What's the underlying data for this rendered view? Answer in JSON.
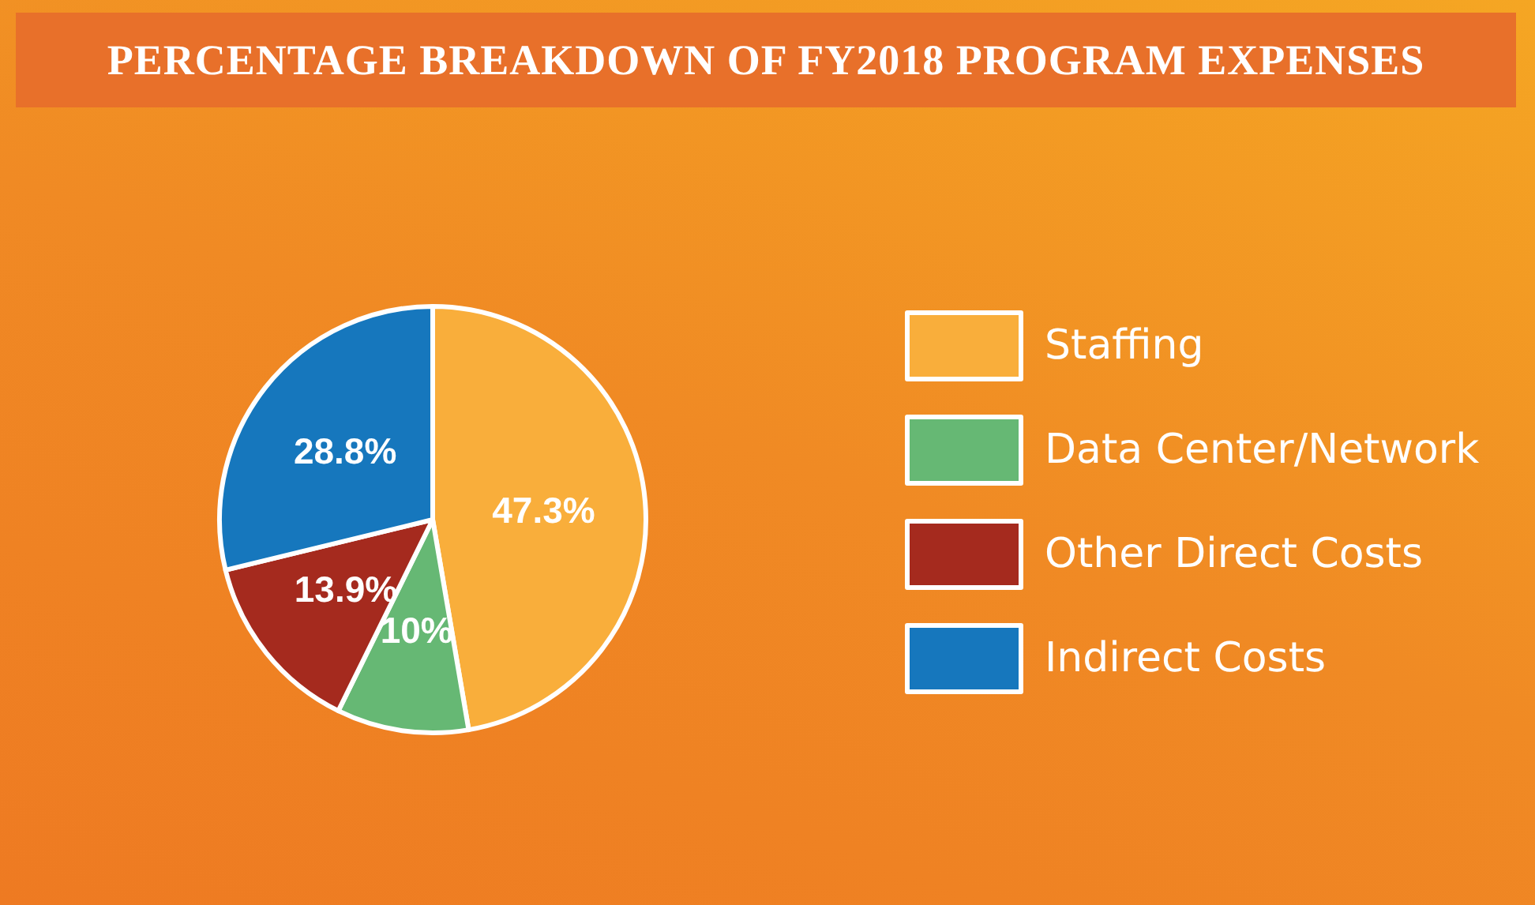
{
  "chart_data": {
    "type": "pie",
    "title": "PERCENTAGE BREAKDOWN OF FY2018 PROGRAM EXPENSES",
    "categories": [
      "Staffing",
      "Data Center/Network",
      "Other Direct Costs",
      "Indirect Costs"
    ],
    "values": [
      47.3,
      10,
      13.9,
      28.8
    ],
    "value_labels": [
      "47.3%",
      "10%",
      "13.9%",
      "28.8%"
    ],
    "colors": [
      "#f9ae3b",
      "#66b874",
      "#a52a1e",
      "#1677bd"
    ],
    "legend": "right"
  }
}
